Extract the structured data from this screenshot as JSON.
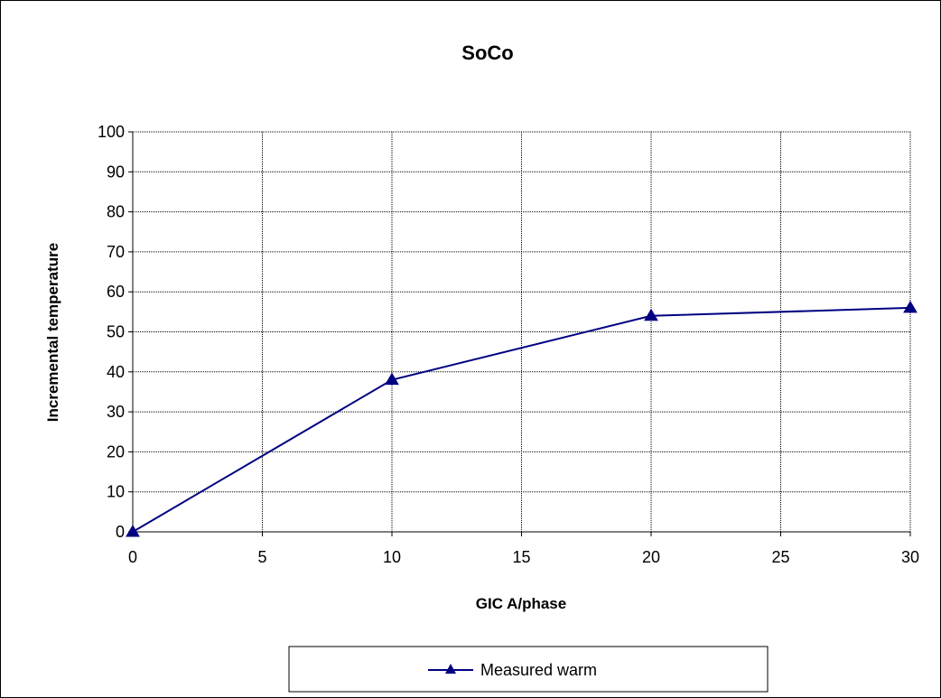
{
  "chart_data": {
    "type": "line",
    "title": "SoCo",
    "xlabel": "GIC A/phase",
    "ylabel": "Incremental temperature",
    "xlim": [
      0,
      30
    ],
    "ylim": [
      0,
      100
    ],
    "xticks": [
      0,
      5,
      10,
      15,
      20,
      25,
      30
    ],
    "yticks": [
      0,
      10,
      20,
      30,
      40,
      50,
      60,
      70,
      80,
      90,
      100
    ],
    "grid": true,
    "legend_position": "bottom",
    "series": [
      {
        "name": "Measured warm",
        "color": "#000080",
        "marker": "triangle",
        "x": [
          0,
          10,
          20,
          30
        ],
        "y": [
          0,
          38,
          54,
          56
        ]
      }
    ]
  }
}
